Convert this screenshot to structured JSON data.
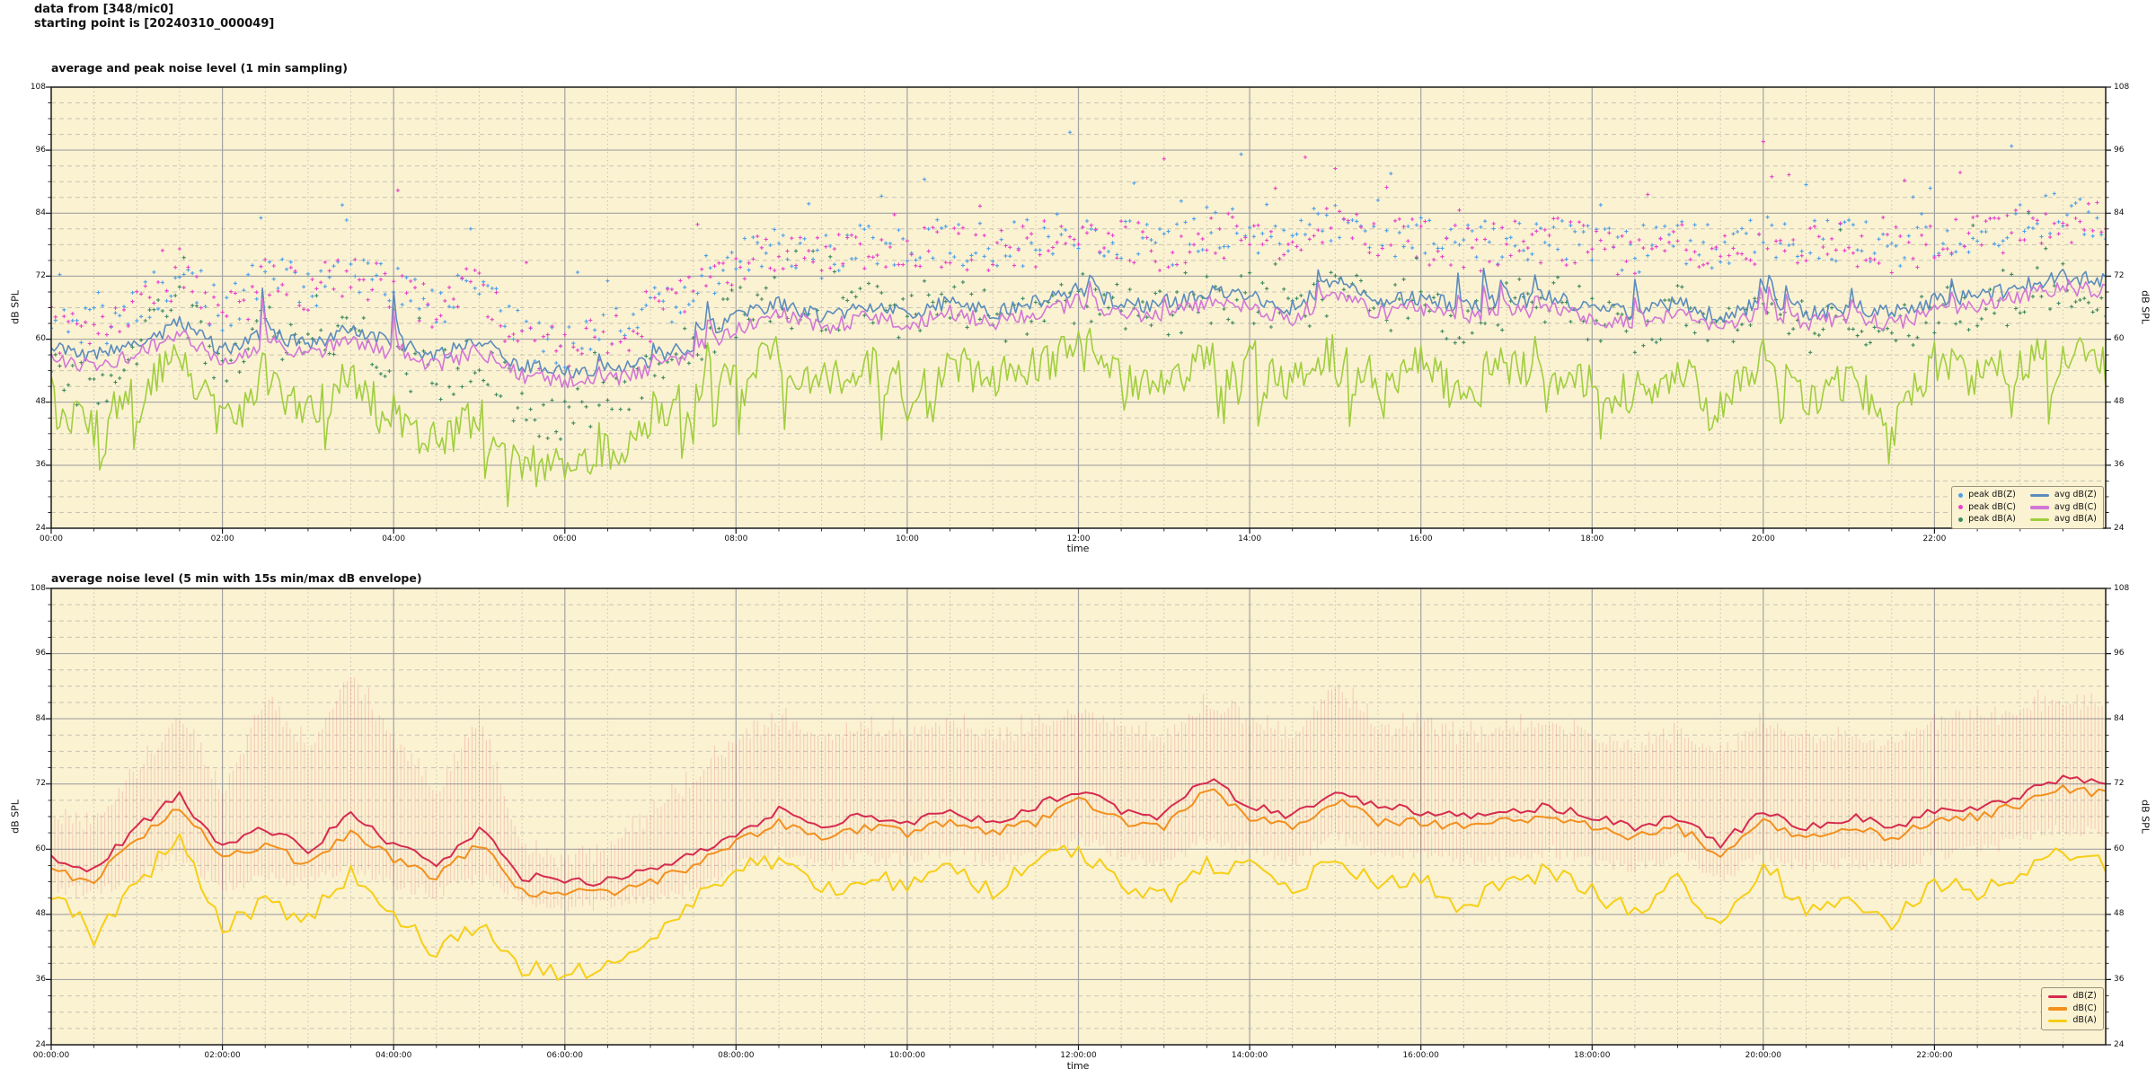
{
  "header": {
    "line1": "data from [348/mic0]",
    "line2": "starting point is [20240310_000049]"
  },
  "palette": {
    "page_bg": "#FFFFFF",
    "plot_bg": "#FBF2D2",
    "grid_major": "#A3A3A3",
    "grid_minor": "#C7C3B4",
    "spine": "#1A1A1A",
    "avg_dBZ": "#5C8CBC",
    "avg_dBC": "#D277D6",
    "avg_dBA": "#A0CE3E",
    "peak_dBZ": "#4FA0E8",
    "peak_dBC": "#E743C9",
    "peak_dBA": "#3F8A5F",
    "dBZ": "#D62B50",
    "dBC": "#F2901E",
    "dBA": "#F6CF16",
    "envelope": "rgba(214,60,80,0.20)"
  },
  "chart_data": [
    {
      "id": "chart1",
      "type": "line+scatter",
      "title": "average and peak noise level (1 min sampling)",
      "xlabel": "time",
      "ylabel_left": "dB SPL",
      "ylabel_right": "dB SPL",
      "ylim": [
        24,
        108
      ],
      "yticks": [
        108,
        96,
        84,
        72,
        60,
        48,
        36,
        24
      ],
      "ytick_minor_step": 3,
      "xlim_hours": [
        0,
        24
      ],
      "xtick_hours": [
        0,
        2,
        4,
        6,
        8,
        10,
        12,
        14,
        16,
        18,
        20,
        22
      ],
      "xtick_labels": [
        "00:00",
        "02:00",
        "04:00",
        "06:00",
        "08:00",
        "10:00",
        "12:00",
        "14:00",
        "16:00",
        "18:00",
        "20:00",
        "22:00"
      ],
      "xtick_minor_step_hours": 0.5,
      "grid": true,
      "legend_position": "lower right",
      "legend_scatter": [
        {
          "label": "peak dB(Z)",
          "color": "#4FA0E8"
        },
        {
          "label": "peak dB(C)",
          "color": "#E743C9"
        },
        {
          "label": "peak dB(A)",
          "color": "#3F8A5F"
        }
      ],
      "legend_lines": [
        {
          "label": "avg dB(Z)",
          "color": "#5C8CBC"
        },
        {
          "label": "avg dB(C)",
          "color": "#D277D6"
        },
        {
          "label": "avg dB(A)",
          "color": "#A0CE3E"
        }
      ],
      "sample_step_hours": 0.5,
      "seed": 11,
      "series": [
        {
          "name": "avg dB(Z)",
          "kind": "line",
          "color": "#5C8CBC",
          "width": 1.6,
          "step_min": 2,
          "jitter": 1.5,
          "spike_amp": 12,
          "values": [
            58,
            57,
            59,
            63,
            58,
            61,
            59,
            62,
            59,
            57,
            60,
            55,
            54,
            54,
            56,
            59,
            64,
            67,
            64,
            66,
            65,
            67,
            65,
            67,
            69,
            67,
            66,
            69,
            68,
            66,
            71,
            67,
            68,
            66,
            67,
            68,
            66,
            65,
            67,
            64,
            67,
            65,
            66,
            65,
            67,
            68,
            70,
            72,
            71
          ]
        },
        {
          "name": "avg dB(C)",
          "kind": "line",
          "color": "#D277D6",
          "width": 1.6,
          "step_min": 2,
          "jitter": 1.5,
          "spike_amp": 11,
          "values": [
            56,
            55,
            57,
            61,
            56,
            59,
            57,
            60,
            57,
            55,
            58,
            53,
            52,
            52,
            54,
            57,
            62,
            65,
            62,
            64,
            63,
            65,
            63,
            65,
            67,
            65,
            64,
            67,
            66,
            64,
            69,
            65,
            66,
            64,
            65,
            66,
            64,
            63,
            65,
            62,
            65,
            63,
            64,
            63,
            65,
            66,
            68,
            70,
            69
          ]
        },
        {
          "name": "avg dB(A)",
          "kind": "line",
          "color": "#A0CE3E",
          "width": 1.6,
          "step_min": 2,
          "jitter": 4.0,
          "spike_amp": 9,
          "dip_chance": 0.05,
          "dip_amp": 12,
          "values": [
            54,
            42,
            52,
            57,
            44,
            51,
            46,
            53,
            44,
            40,
            46,
            38,
            37,
            38,
            44,
            50,
            55,
            57,
            52,
            55,
            53,
            56,
            52,
            55,
            58,
            54,
            51,
            56,
            57,
            52,
            58,
            53,
            55,
            49,
            54,
            56,
            52,
            49,
            54,
            47,
            56,
            48,
            52,
            46,
            54,
            52,
            56,
            58,
            55
          ]
        },
        {
          "name": "peak dB(Z)",
          "kind": "scatter",
          "color": "#4FA0E8",
          "step_min": 3,
          "jitter": 4.5,
          "outlier_chance": 0.05,
          "outlier_amp": 12,
          "values": [
            63,
            62,
            66,
            74,
            64,
            72,
            70,
            74,
            70,
            66,
            72,
            60,
            59,
            61,
            65,
            70,
            75,
            79,
            76,
            78,
            77,
            79,
            77,
            79,
            80,
            79,
            78,
            81,
            80,
            78,
            83,
            79,
            80,
            78,
            79,
            80,
            78,
            77,
            79,
            77,
            80,
            78,
            79,
            78,
            80,
            81,
            82,
            84,
            83
          ]
        },
        {
          "name": "peak dB(C)",
          "kind": "scatter",
          "color": "#E743C9",
          "step_min": 3,
          "jitter": 4.5,
          "outlier_chance": 0.05,
          "outlier_amp": 12,
          "values": [
            62,
            61,
            65,
            73,
            63,
            71,
            69,
            73,
            69,
            65,
            71,
            59,
            58,
            60,
            64,
            69,
            74,
            78,
            75,
            77,
            76,
            78,
            76,
            78,
            79,
            78,
            77,
            80,
            79,
            77,
            82,
            78,
            79,
            77,
            78,
            79,
            77,
            76,
            78,
            76,
            79,
            77,
            78,
            77,
            79,
            80,
            81,
            83,
            82
          ]
        },
        {
          "name": "peak dB(A)",
          "kind": "scatter",
          "color": "#3F8A5F",
          "step_min": 3,
          "jitter": 5.0,
          "outlier_chance": 0.04,
          "outlier_amp": 10,
          "values": [
            56,
            50,
            60,
            68,
            54,
            62,
            58,
            64,
            56,
            52,
            58,
            46,
            45,
            47,
            54,
            60,
            65,
            68,
            64,
            66,
            65,
            67,
            64,
            66,
            68,
            66,
            64,
            68,
            68,
            64,
            70,
            66,
            67,
            62,
            66,
            68,
            64,
            62,
            66,
            60,
            68,
            62,
            65,
            60,
            66,
            65,
            68,
            70,
            68
          ]
        }
      ]
    },
    {
      "id": "chart2",
      "type": "line+envelope",
      "title": "average noise level (5 min with 15s min/max dB envelope)",
      "xlabel": "time",
      "ylabel_left": "dB SPL",
      "ylabel_right": "dB SPL",
      "ylim": [
        24,
        108
      ],
      "yticks": [
        108,
        96,
        84,
        72,
        60,
        48,
        36,
        24
      ],
      "ytick_minor_step": 3,
      "xlim_hours": [
        0,
        24
      ],
      "xtick_hours": [
        0,
        2,
        4,
        6,
        8,
        10,
        12,
        14,
        16,
        18,
        20,
        22
      ],
      "xtick_labels": [
        "00:00:00",
        "02:00:00",
        "04:00:00",
        "06:00:00",
        "08:00:00",
        "10:00:00",
        "12:00:00",
        "14:00:00",
        "16:00:00",
        "18:00:00",
        "20:00:00",
        "22:00:00"
      ],
      "xtick_minor_step_hours": 0.5,
      "grid": true,
      "legend_position": "lower right",
      "legend_lines": [
        {
          "label": "dB(Z)",
          "color": "#D62B50"
        },
        {
          "label": "dB(C)",
          "color": "#F2901E"
        },
        {
          "label": "dB(A)",
          "color": "#F6CF16"
        }
      ],
      "sample_step_hours": 0.5,
      "seed": 42,
      "envelope": {
        "color": "rgba(214,60,80,0.20)",
        "step_min": 2.5,
        "max": [
          66,
          64,
          74,
          84,
          70,
          88,
          78,
          92,
          80,
          70,
          84,
          60,
          58,
          60,
          66,
          72,
          80,
          84,
          80,
          82,
          81,
          83,
          80,
          82,
          85,
          82,
          80,
          86,
          84,
          80,
          90,
          82,
          83,
          80,
          82,
          83,
          80,
          78,
          81,
          78,
          83,
          80,
          81,
          79,
          83,
          84,
          85,
          87,
          86
        ],
        "min": [
          54,
          53,
          56,
          60,
          54,
          56,
          55,
          58,
          55,
          53,
          56,
          52,
          51,
          51,
          52,
          54,
          58,
          61,
          58,
          60,
          59,
          61,
          59,
          60,
          63,
          60,
          59,
          63,
          61,
          59,
          64,
          60,
          61,
          59,
          60,
          61,
          59,
          58,
          60,
          56,
          60,
          58,
          59,
          58,
          60,
          61,
          63,
          65,
          64
        ]
      },
      "series": [
        {
          "name": "dB(Z)",
          "kind": "line",
          "color": "#D62B50",
          "width": 2.0,
          "step_min": 5,
          "jitter": 0.9,
          "values": [
            58,
            56,
            64,
            70,
            60,
            64,
            60,
            66,
            61,
            57,
            64,
            55,
            54,
            54,
            56,
            59,
            63,
            67,
            64,
            66,
            65,
            67,
            65,
            68,
            71,
            67,
            66,
            73,
            68,
            66,
            71,
            68,
            67,
            66,
            67,
            68,
            66,
            64,
            66,
            61,
            67,
            64,
            66,
            64,
            67,
            68,
            70,
            73,
            72
          ]
        },
        {
          "name": "dB(C)",
          "kind": "line",
          "color": "#F2901E",
          "width": 2.0,
          "step_min": 5,
          "jitter": 0.9,
          "values": [
            56,
            54,
            62,
            68,
            58,
            61,
            57,
            63,
            58,
            55,
            61,
            52,
            52,
            52,
            54,
            57,
            61,
            65,
            62,
            64,
            63,
            65,
            63,
            65,
            69,
            65,
            64,
            71,
            66,
            64,
            69,
            65,
            65,
            64,
            65,
            66,
            64,
            62,
            64,
            59,
            65,
            62,
            64,
            62,
            65,
            66,
            68,
            71,
            70
          ]
        },
        {
          "name": "dB(A)",
          "kind": "line",
          "color": "#F6CF16",
          "width": 2.0,
          "step_min": 5,
          "jitter": 1.8,
          "values": [
            52,
            44,
            54,
            62,
            46,
            50,
            47,
            56,
            48,
            41,
            46,
            38,
            37,
            38,
            44,
            50,
            56,
            58,
            52,
            55,
            53,
            56,
            52,
            58,
            60,
            54,
            51,
            57,
            57,
            52,
            58,
            54,
            55,
            49,
            54,
            56,
            52,
            48,
            54,
            45,
            58,
            48,
            52,
            46,
            54,
            52,
            56,
            60,
            57
          ]
        }
      ]
    }
  ]
}
